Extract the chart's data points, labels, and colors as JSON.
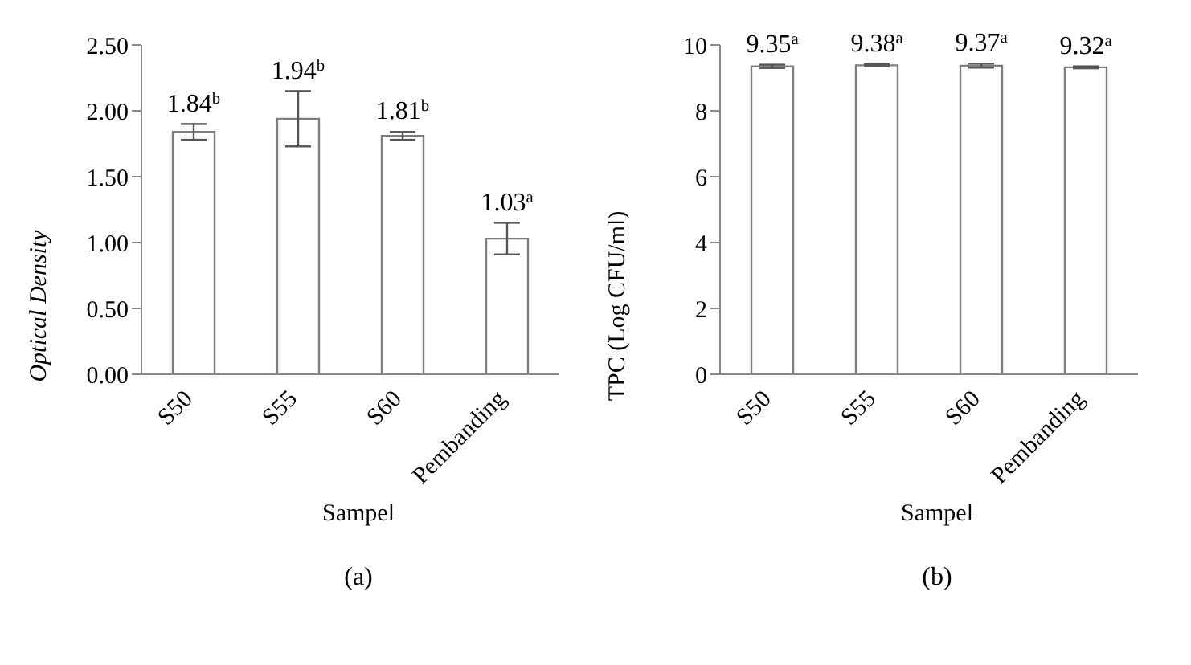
{
  "chart_data": [
    {
      "type": "bar",
      "ylabel": "Optical Density",
      "xlabel": "Sampel",
      "categories": [
        "S50",
        "S55",
        "S60",
        "Pembanding"
      ],
      "values": [
        1.84,
        1.94,
        1.81,
        1.03
      ],
      "errors": [
        0.06,
        0.21,
        0.03,
        0.12
      ],
      "value_labels": [
        "1.84$^{b}$",
        "1.94$^{b}$",
        "1.81$^{b}$",
        "1.03$^{a}$"
      ],
      "color": "#ffffff",
      "ylim": [
        0,
        2.5
      ],
      "yticks": [
        {
          "value": 0,
          "label": "0.00"
        },
        {
          "value": 0.5,
          "label": "0.50"
        },
        {
          "value": 1,
          "label": "1.00"
        },
        {
          "value": 1.5,
          "label": "1.50"
        },
        {
          "value": 2,
          "label": "2.00"
        },
        {
          "value": 2.5,
          "label": "2.50"
        }
      ],
      "annotations": [
        "(a)"
      ]
    },
    {
      "type": "bar",
      "ylabel": "TPC (Log CFU/ml)",
      "xlabel": "Sampel",
      "categories": [
        "S50",
        "S55",
        "S60",
        "Pembanding"
      ],
      "values": [
        9.35,
        9.38,
        9.37,
        9.32
      ],
      "errors": [
        0.05,
        0.03,
        0.06,
        0.03
      ],
      "value_labels": [
        "9.35$^{a}$",
        "9.38$^{a}$",
        "9.37$^{a}$",
        "9.32$^{a}$"
      ],
      "color": "#ffffff",
      "ylim": [
        0,
        10
      ],
      "yticks": [
        0,
        2,
        4,
        6,
        8,
        10
      ],
      "annotations": [
        "(b)"
      ]
    }
  ]
}
